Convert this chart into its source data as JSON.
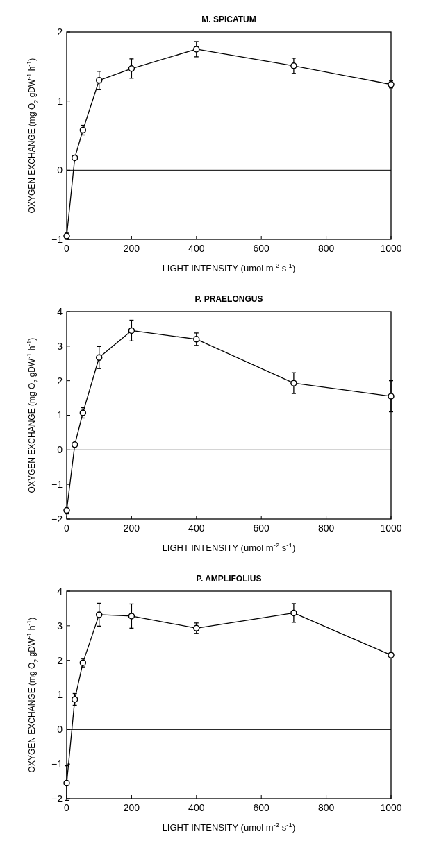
{
  "chart_data": [
    {
      "type": "line",
      "title": "M. SPICATUM",
      "xlabel": "LIGHT INTENSITY (umol m$^{-2}$ s$^{-1}$)",
      "ylabel": "OXYGEN EXCHANGE (mg O$_{2}$ gDW$^{-1}$ h$^{-1}$)",
      "x": [
        0,
        25,
        50,
        100,
        200,
        400,
        700,
        1000
      ],
      "series": [
        {
          "color": "#000000",
          "values": [
            -0.95,
            0.18,
            0.58,
            1.3,
            1.47,
            1.75,
            1.51,
            1.24
          ],
          "errors": [
            0.05,
            null,
            0.07,
            0.13,
            0.14,
            0.11,
            0.11,
            0.05
          ]
        }
      ],
      "xlim": [
        0,
        1000
      ],
      "xticks": [
        0,
        200,
        400,
        600,
        800,
        1000
      ],
      "ylim": [
        -1,
        2
      ],
      "yticks": [
        -1,
        0,
        1,
        2
      ],
      "ref_lines": [
        {
          "axis": "y",
          "value": 0,
          "color": "#000000"
        }
      ],
      "marker": "circle"
    },
    {
      "type": "line",
      "title": "P. PRAELONGUS",
      "xlabel": "LIGHT INTENSITY (umol m$^{-2}$ s$^{-1}$)",
      "ylabel": "OXYGEN EXCHANGE (mg O$_{2}$ gDW$^{-1}$ h$^{-1}$)",
      "x": [
        0,
        25,
        50,
        100,
        200,
        400,
        700,
        1000
      ],
      "series": [
        {
          "color": "#000000",
          "values": [
            -1.75,
            0.15,
            1.07,
            2.67,
            3.45,
            3.2,
            1.93,
            1.55
          ],
          "errors": [
            0.1,
            null,
            0.15,
            0.32,
            0.3,
            0.18,
            0.3,
            0.45
          ]
        }
      ],
      "xlim": [
        0,
        1000
      ],
      "xticks": [
        0,
        200,
        400,
        600,
        800,
        1000
      ],
      "ylim": [
        -2,
        4
      ],
      "yticks": [
        -2,
        -1,
        0,
        1,
        2,
        3,
        4
      ],
      "ref_lines": [
        {
          "axis": "y",
          "value": 0,
          "color": "#000000"
        }
      ],
      "marker": "circle"
    },
    {
      "type": "line",
      "title": "P. AMPLIFOLIUS",
      "xlabel": "LIGHT INTENSITY (umol m$^{-2}$ s$^{-1}$)",
      "ylabel": "OXYGEN EXCHANGE (mg O$_{2}$ gDW$^{-1}$ h$^{-1}$)",
      "x": [
        0,
        25,
        50,
        100,
        200,
        400,
        700,
        1000
      ],
      "series": [
        {
          "color": "#000000",
          "values": [
            -1.55,
            0.87,
            1.93,
            3.32,
            3.28,
            2.93,
            3.37,
            2.15
          ],
          "errors": [
            0.5,
            0.17,
            0.12,
            0.33,
            0.35,
            0.15,
            0.27,
            null
          ]
        }
      ],
      "xlim": [
        0,
        1000
      ],
      "xticks": [
        0,
        200,
        400,
        600,
        800,
        1000
      ],
      "ylim": [
        -2,
        4
      ],
      "yticks": [
        -2,
        -1,
        0,
        1,
        2,
        3,
        4
      ],
      "ref_lines": [
        {
          "axis": "y",
          "value": 0,
          "color": "#000000"
        }
      ],
      "marker": "circle"
    }
  ]
}
